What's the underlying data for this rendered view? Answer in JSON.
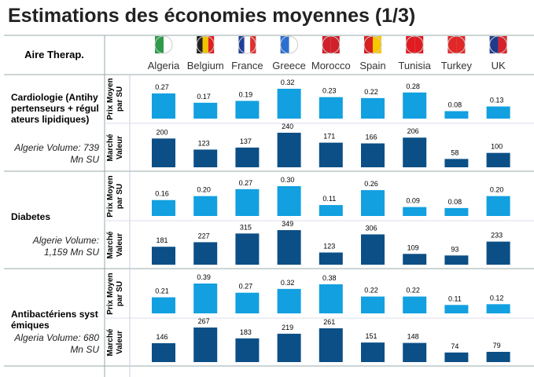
{
  "title": "Estimations des économies moyennes (1/3)",
  "header": {
    "first": "Aire Therap.",
    "countries": [
      "Algeria",
      "Belgium",
      "France",
      "Greece",
      "Morocco",
      "Spain",
      "Tunisia",
      "Turkey",
      "UK"
    ]
  },
  "sections": [
    {
      "label": "Cardiologie (Antihypertenseurs + régulateurs lipidiques)",
      "volume": "Algerie Volume: 739 Mn SU"
    },
    {
      "label": "Diabetes",
      "volume": "Algerie Volume: 1,159 Mn SU"
    },
    {
      "label": "Antibactériens systémiques",
      "volume": "Algeria Volume: 680 Mn SU"
    }
  ],
  "chart_data": [
    {
      "type": "bar",
      "label": "Prix Moyen par SU",
      "color": "#12a0e0",
      "values": [
        0.27,
        0.17,
        0.19,
        0.32,
        0.23,
        0.22,
        0.28,
        0.08,
        0.13
      ],
      "value_labels": [
        "0.27",
        "0.17",
        "0.19",
        "0.32",
        "0.23",
        "0.22",
        "0.28",
        "0.08",
        "0.13"
      ]
    },
    {
      "type": "bar",
      "label": "Marché Valeur",
      "color": "#0c4f86",
      "values": [
        200,
        123,
        137,
        240,
        171,
        166,
        206,
        58,
        100
      ]
    },
    {
      "type": "bar",
      "label": "Prix Moyen par SU",
      "color": "#12a0e0",
      "values": [
        0.16,
        0.2,
        0.27,
        0.3,
        0.11,
        0.26,
        0.09,
        0.08,
        0.2
      ],
      "value_labels": [
        "0.16",
        "0.20",
        "0.27",
        "0.30",
        "0.11",
        "0.26",
        "0.09",
        "0.08",
        "0.20"
      ]
    },
    {
      "type": "bar",
      "label": "Marché Valeur",
      "color": "#0c4f86",
      "values": [
        181,
        227,
        315,
        349,
        123,
        306,
        109,
        93,
        233
      ]
    },
    {
      "type": "bar",
      "label": "Prix Moyen par SU",
      "color": "#12a0e0",
      "values": [
        0.21,
        0.39,
        0.27,
        0.32,
        0.38,
        0.22,
        0.22,
        0.11,
        0.12
      ],
      "value_labels": [
        "0.21",
        "0.39",
        "0.27",
        "0.32",
        "0.38",
        "0.22",
        "0.22",
        "0.11",
        "0.12"
      ]
    },
    {
      "type": "bar",
      "label": "Marché Valeur",
      "color": "#0c4f86",
      "values": [
        146,
        267,
        183,
        219,
        261,
        151,
        148,
        74,
        79
      ]
    }
  ]
}
